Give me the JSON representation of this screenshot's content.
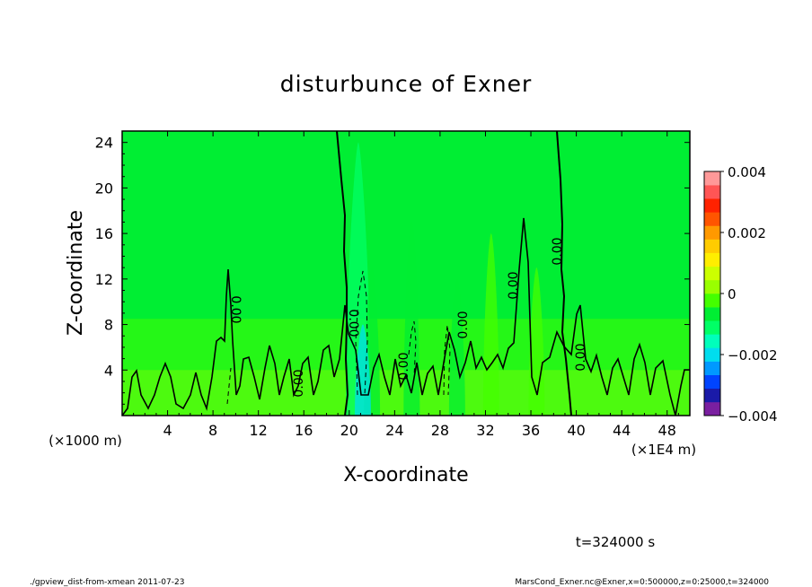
{
  "chart_data": {
    "type": "heatmap",
    "title": "disturbunce of Exner",
    "xlabel": "X-coordinate",
    "ylabel": "Z-coordinate",
    "x_unit_label": "(×1000 m)",
    "x_scale_label": "(×1E4 m)",
    "xlim": [
      0,
      50
    ],
    "ylim": [
      0,
      25
    ],
    "x_ticks": [
      "4",
      "8",
      "12",
      "16",
      "20",
      "24",
      "28",
      "32",
      "36",
      "40",
      "44",
      "48"
    ],
    "y_ticks": [
      "4",
      "8",
      "12",
      "16",
      "20",
      "24"
    ],
    "x_tick_values": [
      4,
      8,
      12,
      16,
      20,
      24,
      28,
      32,
      36,
      40,
      44,
      48
    ],
    "y_tick_values": [
      4,
      8,
      12,
      16,
      20,
      24
    ],
    "colorbar": {
      "min": -0.004,
      "max": 0.004,
      "labels": [
        "0.004",
        "0.002",
        "0",
        "−0.002",
        "−0.004"
      ],
      "label_values": [
        0.004,
        0.002,
        0,
        -0.002,
        -0.004
      ],
      "colors": [
        "#7a1fa0",
        "#1a1aa8",
        "#0044ff",
        "#0099ff",
        "#00ddee",
        "#00ffbb",
        "#00ff66",
        "#00ee33",
        "#44ff00",
        "#99ff00",
        "#ccff00",
        "#ffee00",
        "#ffcc00",
        "#ff9900",
        "#ff5500",
        "#ff2200",
        "#ff5555",
        "#ff9999"
      ]
    },
    "contour_labels": [
      "0.00",
      "0.00",
      "0.00",
      "0.00",
      "0.00",
      "0.00",
      "0.00",
      "0.00",
      "0.00"
    ],
    "background_value": 0,
    "negative_plumes": [
      {
        "x": 20.8,
        "top": 24,
        "value": -0.0012
      },
      {
        "x": 22.0,
        "top": 13,
        "value": -0.0008
      },
      {
        "x": 25.5,
        "top": 17,
        "value": -0.0006
      },
      {
        "x": 29.5,
        "top": 12,
        "value": -0.0005
      },
      {
        "x": 32.5,
        "top": 16,
        "value": -0.0004
      },
      {
        "x": 36.5,
        "top": 13,
        "value": -0.0004
      },
      {
        "x": 21.2,
        "top": 8,
        "value": -0.0022
      }
    ]
  },
  "footer": {
    "time": "t=324000 s",
    "left": "./gpview_dist-from-xmean  2011-07-23",
    "right": "MarsCond_Exner.nc@Exner,x=0:500000,z=0:25000,t=324000"
  }
}
